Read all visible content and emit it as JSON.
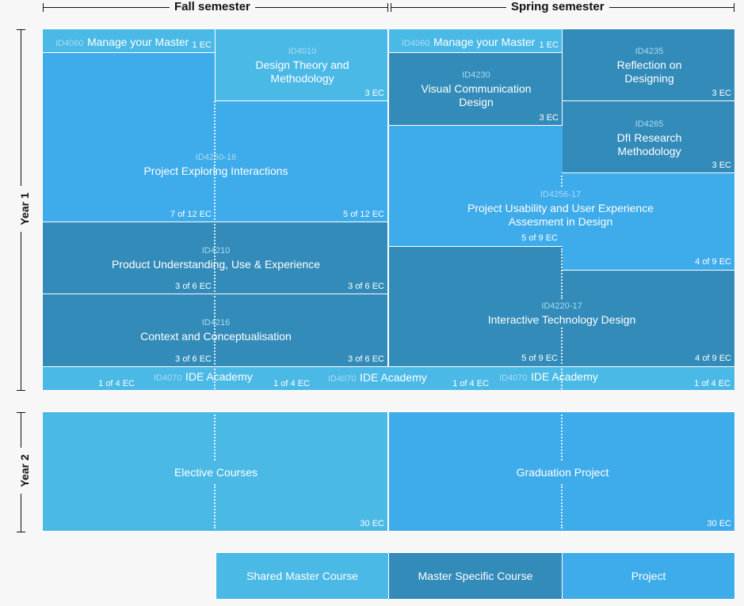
{
  "headers": {
    "fall": "Fall semester",
    "spring": "Spring semester",
    "year1": "Year 1",
    "year2": "Year 2"
  },
  "colors": {
    "shared_master_course": "#4ab9e6",
    "master_specific_course": "#328bb8",
    "project": "#3eabea"
  },
  "courses": {
    "manage_fall": {
      "id": "ID4060",
      "title": "Manage your Master",
      "ec": "1 EC"
    },
    "manage_spring": {
      "id": "ID4060",
      "title": "Manage your Master",
      "ec": "1 EC"
    },
    "design_theory": {
      "id": "ID4010",
      "title": "Design Theory and Methodology",
      "ec": "3 EC"
    },
    "reflection": {
      "id": "ID4235",
      "title": "Reflection on Designing",
      "ec": "3 EC"
    },
    "visual_comm": {
      "id": "ID4230",
      "title": "Visual Communication Design",
      "ec": "3 EC"
    },
    "dfi_research": {
      "id": "ID4265",
      "title": "DfI Research Methodology",
      "ec": "3 EC"
    },
    "project_exploring": {
      "id": "ID4250-16",
      "title": "Project Exploring Interactions",
      "ec_left": "7 of 12 EC",
      "ec_right": "5 of 12 EC"
    },
    "project_usability": {
      "id": "ID4256-17",
      "title": "Project Usability and User Experience Assesment in Design",
      "ec_left": "5 of 9 EC",
      "ec_right": "4 of 9 EC"
    },
    "product_understanding": {
      "id": "ID4210",
      "title": "Product Understanding, Use & Experience",
      "ec_left": "3 of 6 EC",
      "ec_right": "3 of 6 EC"
    },
    "context": {
      "id": "ID4216",
      "title": "Context and Conceptualisation",
      "ec_left": "3 of 6 EC",
      "ec_right": "3 of 6 EC"
    },
    "interactive_tech": {
      "id": "ID4220-17",
      "title": "Interactive Technology Design",
      "ec_left": "5 of 9 EC",
      "ec_right": "4 of 9 EC"
    },
    "ide_academy": {
      "id": "ID4070",
      "title": "IDE Academy",
      "ec": [
        "1 of 4 EC",
        "1 of 4 EC",
        "1 of 4 EC",
        "1 of 4 EC"
      ]
    },
    "elective": {
      "title": "Elective Courses",
      "ec": "30 EC"
    },
    "graduation": {
      "title": "Graduation Project",
      "ec": "30 EC"
    }
  },
  "legend": {
    "shared": "Shared Master Course",
    "specific": "Master Specific Course",
    "project": "Project"
  }
}
